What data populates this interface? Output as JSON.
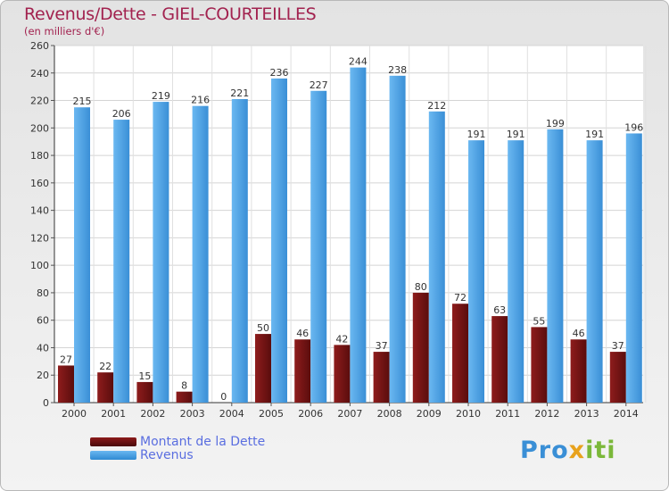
{
  "title": "Revenus/Dette - GIEL-COURTEILLES",
  "subtitle": "(en milliers d'€)",
  "colors": {
    "debt": "#7a1414",
    "revenue": "#4aa3e6",
    "title": "#a2224f"
  },
  "legend": {
    "debt_label": "Montant de la Dette",
    "revenue_label": "Revenus"
  },
  "logo": {
    "p1": "Pro",
    "p2": "x",
    "p3": "iti"
  },
  "chart_data": {
    "type": "bar",
    "title": "Revenus/Dette - GIEL-COURTEILLES",
    "ylabel": "(en milliers d'€)",
    "xlabel": "",
    "categories": [
      "2000",
      "2001",
      "2002",
      "2003",
      "2004",
      "2005",
      "2006",
      "2007",
      "2008",
      "2009",
      "2010",
      "2011",
      "2012",
      "2013",
      "2014"
    ],
    "series": [
      {
        "name": "Montant de la Dette",
        "values": [
          27,
          22,
          15,
          8,
          0,
          50,
          46,
          42,
          37,
          80,
          72,
          63,
          55,
          46,
          37
        ]
      },
      {
        "name": "Revenus",
        "values": [
          215,
          206,
          219,
          216,
          221,
          236,
          227,
          244,
          238,
          212,
          191,
          191,
          199,
          191,
          196
        ]
      }
    ],
    "ylim": [
      0,
      260
    ],
    "yticks": [
      0,
      20,
      40,
      60,
      80,
      100,
      120,
      140,
      160,
      180,
      200,
      220,
      240,
      260
    ],
    "grid": true,
    "legend": "bottom-left"
  }
}
